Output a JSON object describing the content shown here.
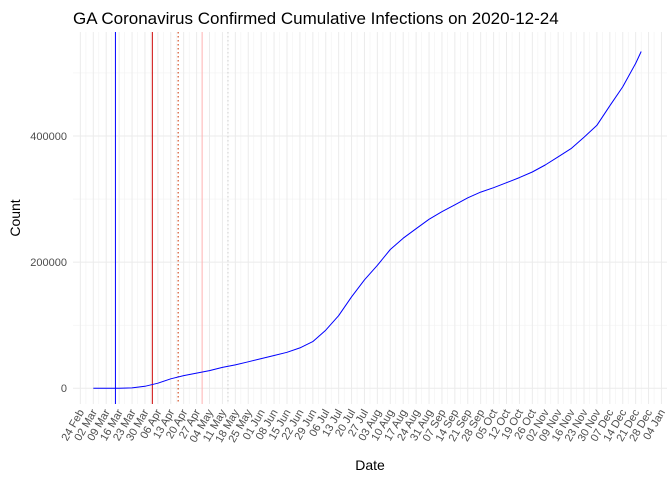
{
  "chart_data": {
    "type": "line",
    "title": "GA Coronavirus Confirmed Cumulative Infections on 2020-12-24",
    "xlabel": "Date",
    "ylabel": "Count",
    "x_range": [
      "2020-02-20",
      "2021-01-07"
    ],
    "ylim": [
      -25000,
      565000
    ],
    "y_ticks": [
      0,
      200000,
      400000
    ],
    "y_tick_labels": [
      "0",
      "200000",
      "400000"
    ],
    "x_ticks": [
      "2020-02-24",
      "2020-03-02",
      "2020-03-09",
      "2020-03-16",
      "2020-03-23",
      "2020-03-30",
      "2020-04-06",
      "2020-04-13",
      "2020-04-20",
      "2020-04-27",
      "2020-05-04",
      "2020-05-11",
      "2020-05-18",
      "2020-05-25",
      "2020-06-01",
      "2020-06-08",
      "2020-06-15",
      "2020-06-22",
      "2020-06-29",
      "2020-07-06",
      "2020-07-13",
      "2020-07-20",
      "2020-07-27",
      "2020-08-03",
      "2020-08-10",
      "2020-08-17",
      "2020-08-24",
      "2020-08-31",
      "2020-09-07",
      "2020-09-14",
      "2020-09-21",
      "2020-09-28",
      "2020-10-05",
      "2020-10-12",
      "2020-10-19",
      "2020-10-26",
      "2020-11-02",
      "2020-11-09",
      "2020-11-16",
      "2020-11-23",
      "2020-11-30",
      "2020-12-07",
      "2020-12-14",
      "2020-12-21",
      "2020-12-28",
      "2021-01-04"
    ],
    "x_tick_labels": [
      "24 Feb",
      "02 Mar",
      "09 Mar",
      "16 Mar",
      "23 Mar",
      "30 Mar",
      "06 Apr",
      "13 Apr",
      "20 Apr",
      "27 Apr",
      "04 May",
      "11 May",
      "18 May",
      "25 May",
      "01 Jun",
      "08 Jun",
      "15 Jun",
      "22 Jun",
      "29 Jun",
      "06 Jul",
      "13 Jul",
      "20 Jul",
      "27 Jul",
      "03 Aug",
      "10 Aug",
      "17 Aug",
      "24 Aug",
      "31 Aug",
      "07 Sep",
      "14 Sep",
      "21 Sep",
      "28 Sep",
      "05 Oct",
      "12 Oct",
      "19 Oct",
      "26 Oct",
      "02 Nov",
      "09 Nov",
      "16 Nov",
      "23 Nov",
      "30 Nov",
      "07 Dec",
      "14 Dec",
      "21 Dec",
      "28 Dec",
      "04 Jan"
    ],
    "grid": true,
    "vlines": [
      {
        "date": "2020-03-14",
        "color": "#0000ff",
        "style": "solid"
      },
      {
        "date": "2020-04-03",
        "color": "#cc0000",
        "style": "solid"
      },
      {
        "date": "2020-04-17",
        "color": "#cc3300",
        "style": "dotted"
      },
      {
        "date": "2020-04-30",
        "color": "#ffb3b3",
        "style": "solid"
      },
      {
        "date": "2020-05-14",
        "color": "#cccccc",
        "style": "dotted"
      }
    ],
    "series": [
      {
        "color": "#0000ff",
        "x": [
          "2020-03-02",
          "2020-03-09",
          "2020-03-16",
          "2020-03-23",
          "2020-03-30",
          "2020-04-06",
          "2020-04-13",
          "2020-04-20",
          "2020-04-27",
          "2020-05-04",
          "2020-05-11",
          "2020-05-18",
          "2020-05-25",
          "2020-06-01",
          "2020-06-08",
          "2020-06-15",
          "2020-06-22",
          "2020-06-29",
          "2020-07-06",
          "2020-07-13",
          "2020-07-20",
          "2020-07-27",
          "2020-08-03",
          "2020-08-10",
          "2020-08-17",
          "2020-08-24",
          "2020-08-31",
          "2020-09-07",
          "2020-09-14",
          "2020-09-21",
          "2020-09-28",
          "2020-10-05",
          "2020-10-12",
          "2020-10-19",
          "2020-10-26",
          "2020-11-02",
          "2020-11-09",
          "2020-11-16",
          "2020-11-23",
          "2020-11-30",
          "2020-12-07",
          "2020-12-14",
          "2020-12-21",
          "2020-12-24"
        ],
        "y": [
          0,
          0,
          100,
          600,
          3000,
          8000,
          15000,
          20000,
          24000,
          28000,
          33000,
          37000,
          42000,
          47000,
          52000,
          57000,
          64000,
          74000,
          92000,
          115000,
          145000,
          172000,
          195000,
          220000,
          238000,
          253000,
          268000,
          280000,
          291000,
          302000,
          311000,
          318000,
          326000,
          334000,
          343000,
          354000,
          367000,
          380000,
          398000,
          417000,
          448000,
          478000,
          515000,
          534000
        ]
      }
    ]
  }
}
